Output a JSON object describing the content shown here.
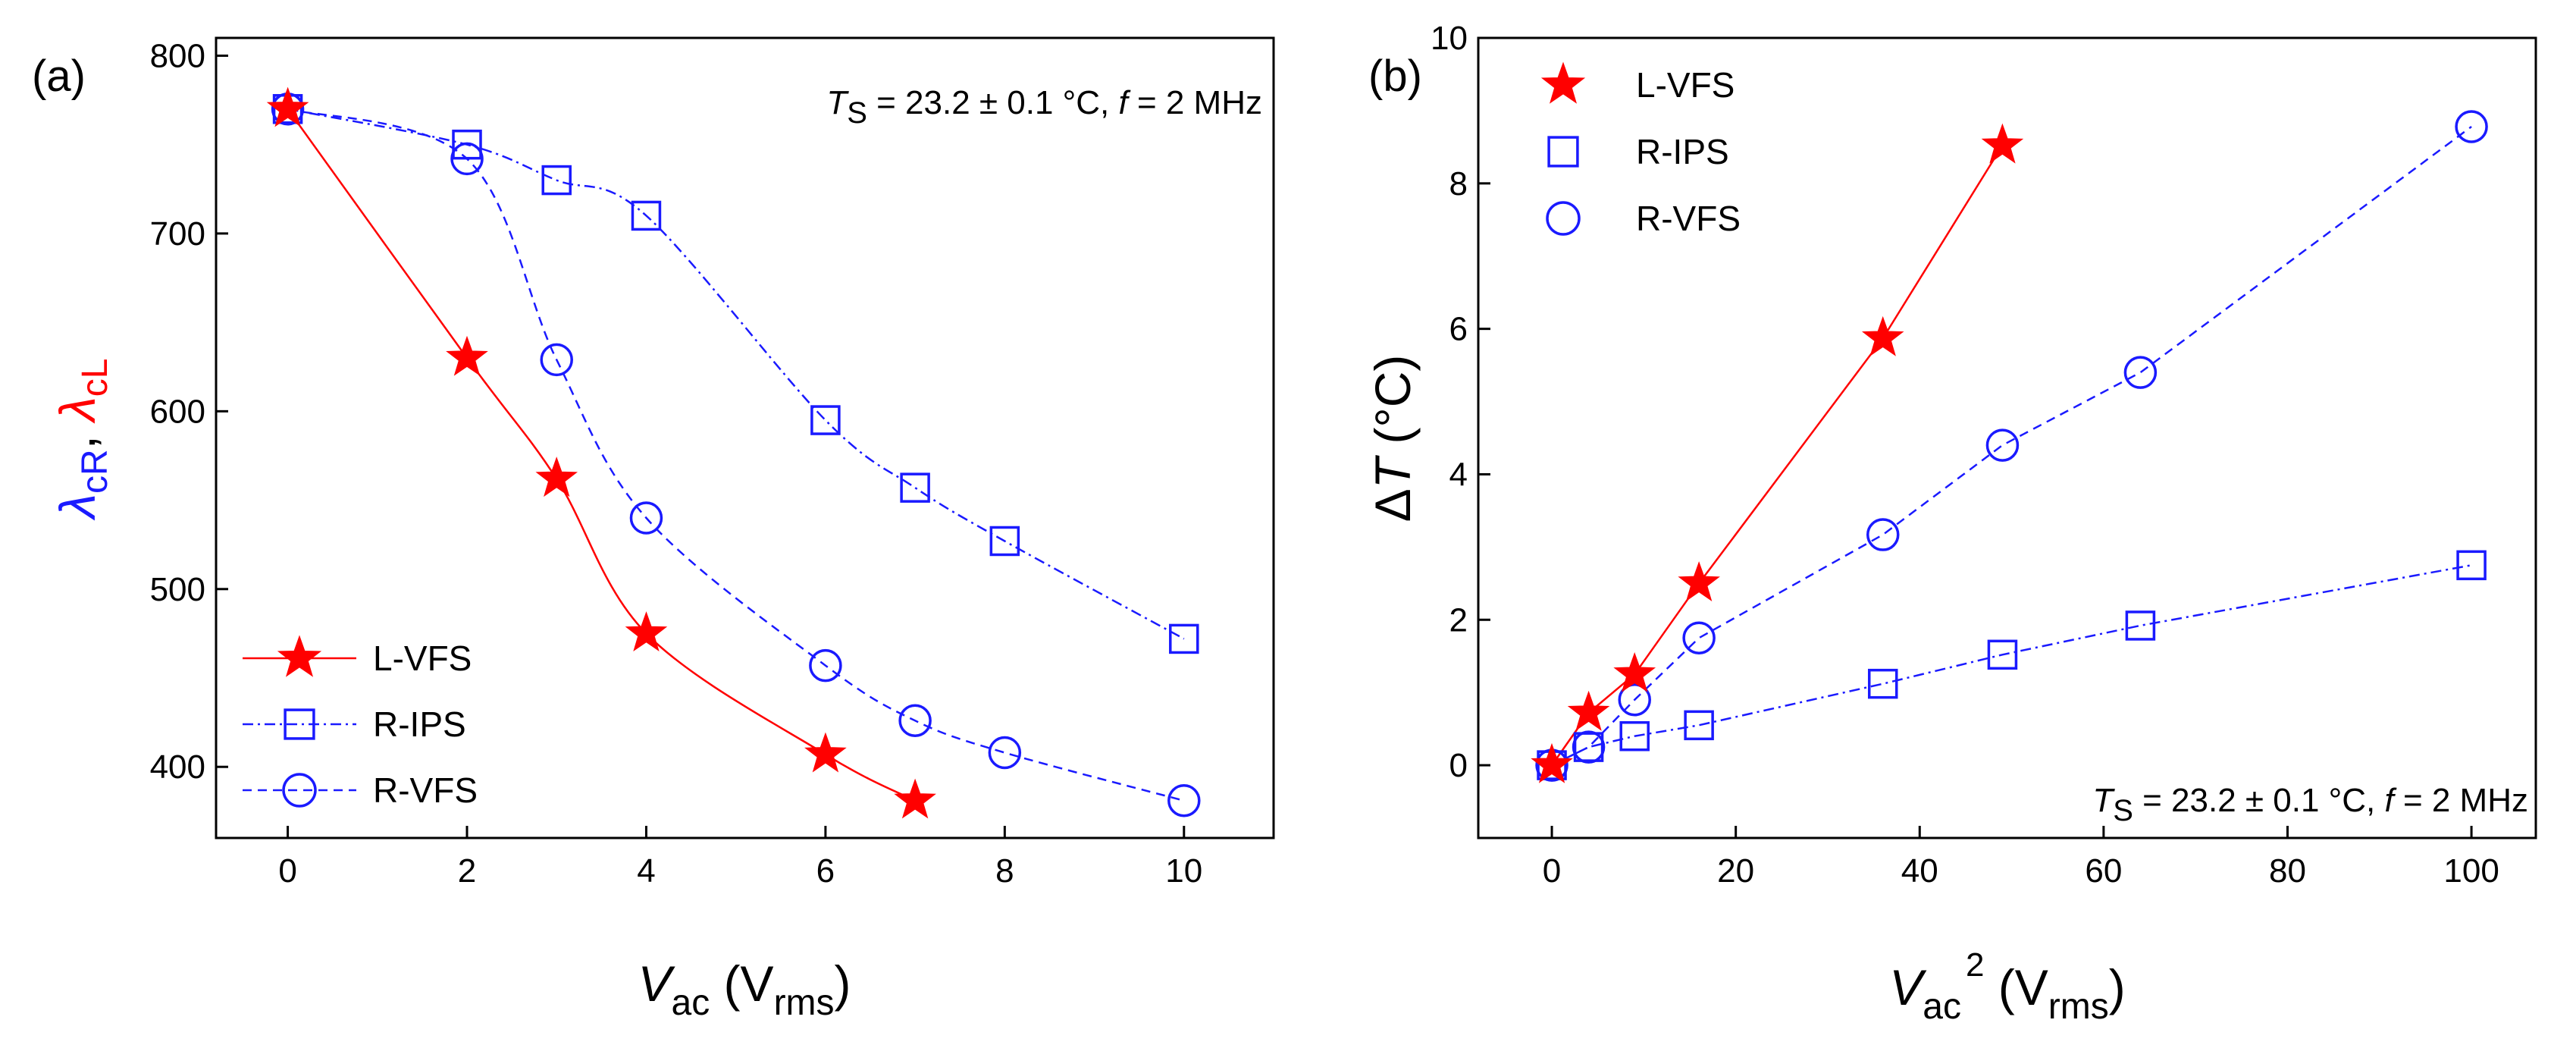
{
  "chart_data": [
    {
      "type": "line",
      "panel_label": "(a)",
      "annotation": {
        "ts_sym": "T",
        "ts_sub": "S",
        "ts_rest": " = 23.2 ± 0.1 °C, ",
        "f_sym": "f",
        "f_rest": " = 2 MHz"
      },
      "xlabel": {
        "sym": "V",
        "sub": "ac",
        "unit_open": " (V",
        "unit_sub": "rms",
        "unit_close": ")"
      },
      "ylabel": {
        "sym1": "λ",
        "sub1": "cR",
        "sep": ", ",
        "sym2": "λ",
        "sub2": "cL"
      },
      "xlim": [
        -0.8,
        11
      ],
      "ylim": [
        360,
        810
      ],
      "xticks": [
        "0",
        "2",
        "4",
        "6",
        "8",
        "10"
      ],
      "yticks": [
        "400",
        "500",
        "600",
        "700",
        "800"
      ],
      "legend_position": "bottom-left",
      "series": [
        {
          "name": "L-VFS",
          "marker": "star",
          "color": "#ff0000",
          "line": "solid",
          "x": [
            0,
            2,
            3,
            4,
            6,
            7
          ],
          "y": [
            770,
            630,
            562,
            475,
            407,
            381
          ]
        },
        {
          "name": "R-IPS",
          "marker": "square",
          "color": "#1a1aff",
          "line": "dashdot",
          "x": [
            0,
            2,
            3,
            4,
            6,
            7,
            8,
            10
          ],
          "y": [
            770,
            750,
            730,
            710,
            595,
            557,
            527,
            472
          ]
        },
        {
          "name": "R-VFS",
          "marker": "circle",
          "color": "#1a1aff",
          "line": "dashed",
          "x": [
            0,
            2,
            3,
            4,
            6,
            7,
            8,
            10
          ],
          "y": [
            770,
            742,
            629,
            540,
            457,
            426,
            408,
            381
          ]
        }
      ]
    },
    {
      "type": "line",
      "panel_label": "(b)",
      "annotation": {
        "ts_sym": "T",
        "ts_sub": "S",
        "ts_rest": " = 23.2 ± 0.1 °C, ",
        "f_sym": "f",
        "f_rest": " = 2 MHz"
      },
      "xlabel": {
        "sym": "V",
        "sub": "ac",
        "sup": "2",
        "unit_open": " (V",
        "unit_sub": "rms",
        "unit_close": ")"
      },
      "ylabel": {
        "delta": "Δ",
        "sym": "T",
        "unit": " (°C)"
      },
      "xlim": [
        -8,
        107
      ],
      "ylim": [
        -1,
        10
      ],
      "xticks": [
        "0",
        "20",
        "40",
        "60",
        "80",
        "100"
      ],
      "yticks": [
        "0",
        "2",
        "4",
        "6",
        "8",
        "10"
      ],
      "legend_position": "top-left",
      "series": [
        {
          "name": "L-VFS",
          "marker": "star",
          "color": "#ff0000",
          "line": "solid",
          "x": [
            0,
            4,
            9,
            16,
            36,
            49
          ],
          "y": [
            0.0,
            0.72,
            1.25,
            2.5,
            5.87,
            8.52
          ]
        },
        {
          "name": "R-IPS",
          "marker": "square",
          "color": "#1a1aff",
          "line": "dashdot",
          "x": [
            0,
            4,
            9,
            16,
            36,
            49,
            64,
            100
          ],
          "y": [
            0.0,
            0.25,
            0.4,
            0.55,
            1.12,
            1.52,
            1.92,
            2.75
          ]
        },
        {
          "name": "R-VFS",
          "marker": "circle",
          "color": "#1a1aff",
          "line": "dashed",
          "x": [
            0,
            4,
            9,
            16,
            36,
            49,
            64,
            100
          ],
          "y": [
            0.0,
            0.25,
            0.9,
            1.75,
            3.17,
            4.4,
            5.4,
            8.78
          ]
        }
      ]
    }
  ]
}
